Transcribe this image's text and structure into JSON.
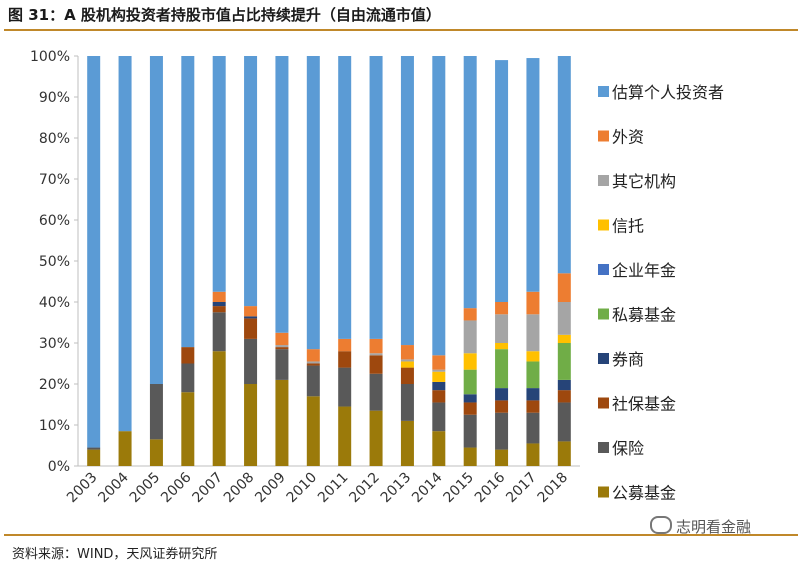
{
  "title": "图 31：A 股机构投资者持股市值占比持续提升（自由流通市值）",
  "source": "资料来源：WIND，天风证券研究所",
  "watermark": "志明看金融",
  "chart_data": {
    "type": "bar",
    "stacked": true,
    "categories": [
      "2003",
      "2004",
      "2005",
      "2006",
      "2007",
      "2008",
      "2009",
      "2010",
      "2011",
      "2012",
      "2013",
      "2014",
      "2015",
      "2016",
      "2017",
      "2018"
    ],
    "yticks": [
      "0%",
      "10%",
      "20%",
      "30%",
      "40%",
      "50%",
      "60%",
      "70%",
      "80%",
      "90%",
      "100%"
    ],
    "ylim": [
      0,
      100
    ],
    "legend_position": "right",
    "series": [
      {
        "name": "公募基金",
        "color": "#9b7a0a",
        "values": [
          4,
          8.5,
          6.5,
          18,
          28,
          20,
          21,
          17,
          14.5,
          13.5,
          11,
          8.5,
          4.5,
          4,
          5.5,
          6
        ]
      },
      {
        "name": "保险",
        "color": "#595959",
        "values": [
          0.5,
          0,
          13.5,
          7,
          9.5,
          11,
          7.5,
          7.5,
          9.5,
          9,
          9,
          7,
          8,
          9,
          7.5,
          9.5
        ]
      },
      {
        "name": "社保基金",
        "color": "#9e480e",
        "values": [
          0,
          0,
          0,
          4,
          1.5,
          5,
          0.5,
          0.5,
          4,
          4.5,
          4,
          3,
          3,
          3,
          3,
          3
        ]
      },
      {
        "name": "券商",
        "color": "#264478",
        "values": [
          0,
          0,
          0,
          0,
          1,
          0.5,
          0,
          0,
          0,
          0,
          0,
          2,
          2,
          3,
          3,
          2.5
        ]
      },
      {
        "name": "私募基金",
        "color": "#70ad47",
        "values": [
          0,
          0,
          0,
          0,
          0,
          0,
          0,
          0,
          0,
          0,
          0,
          0,
          6,
          9.5,
          6.5,
          9
        ]
      },
      {
        "name": "企业年金",
        "color": "#4472c4",
        "values": [
          0,
          0,
          0,
          0,
          0,
          0,
          0,
          0,
          0,
          0,
          0,
          0,
          0,
          0,
          0,
          0
        ]
      },
      {
        "name": "信托",
        "color": "#ffc000",
        "values": [
          0,
          0,
          0,
          0,
          0,
          0,
          0,
          0,
          0,
          0,
          1.5,
          2.5,
          4,
          1.5,
          2.5,
          2
        ]
      },
      {
        "name": "其它机构",
        "color": "#a5a5a5",
        "values": [
          0,
          0,
          0,
          0,
          0,
          0,
          0.5,
          0.5,
          0,
          0.5,
          0.5,
          0.5,
          8,
          7,
          9,
          8
        ]
      },
      {
        "name": "外资",
        "color": "#ed7d31",
        "values": [
          0,
          0,
          0,
          0,
          2.5,
          2.5,
          3,
          3,
          3,
          3.5,
          3.5,
          3.5,
          3,
          3,
          5.5,
          7
        ]
      },
      {
        "name": "估算个人投资者",
        "color": "#5b9bd5",
        "values": [
          95.5,
          91.5,
          80,
          71,
          57.5,
          61,
          67.5,
          71.5,
          69,
          69,
          70.5,
          73,
          61.5,
          59,
          57,
          53
        ]
      }
    ]
  }
}
